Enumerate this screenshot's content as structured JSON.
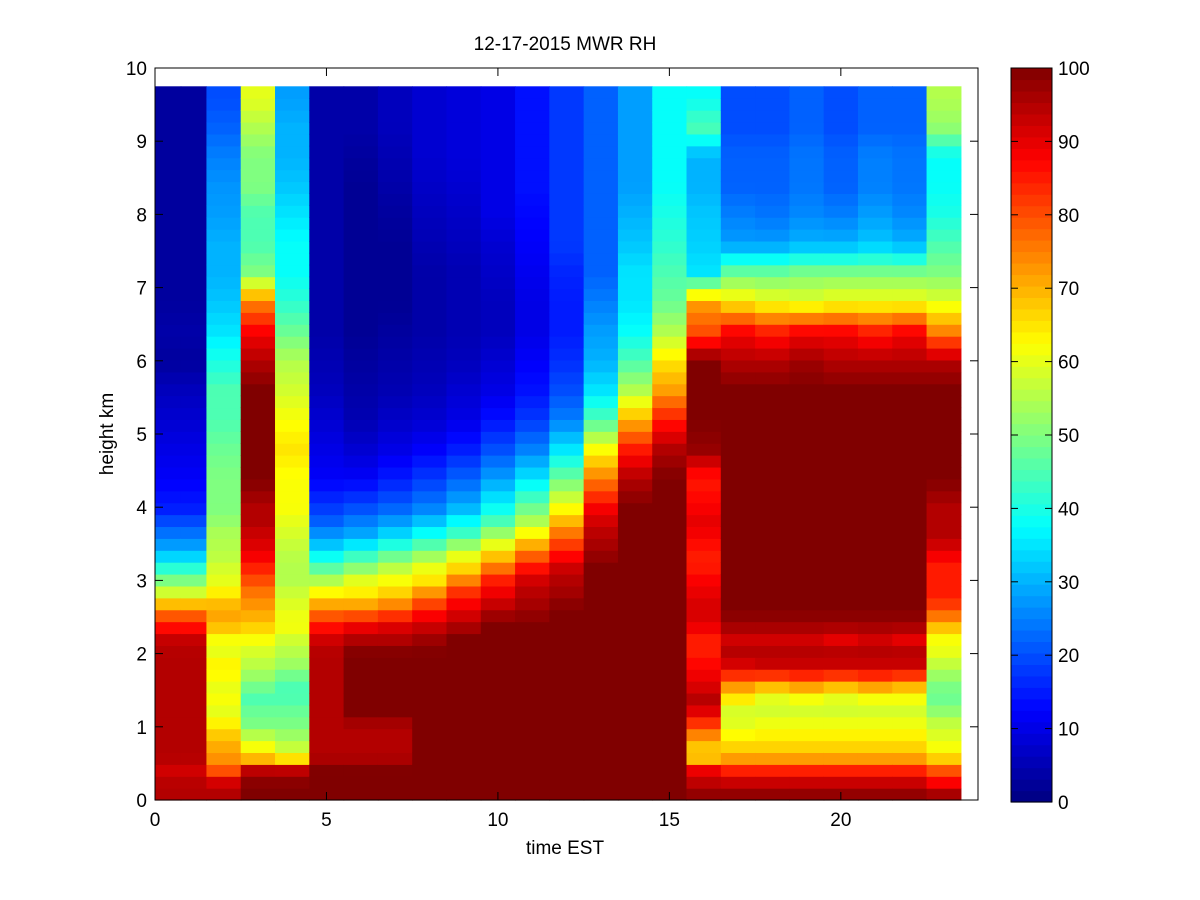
{
  "chart_data": {
    "type": "heatmap",
    "title": "12-17-2015 MWR RH",
    "xlabel": "time EST",
    "ylabel": "height km",
    "xlim": [
      0,
      24
    ],
    "ylim": [
      0,
      10
    ],
    "xticks": [
      "0",
      "5",
      "10",
      "15",
      "20"
    ],
    "xtick_values": [
      0,
      5,
      10,
      15,
      20
    ],
    "yticks": [
      "0",
      "1",
      "2",
      "3",
      "4",
      "5",
      "6",
      "7",
      "8",
      "9",
      "10"
    ],
    "ytick_values": [
      0,
      1,
      2,
      3,
      4,
      5,
      6,
      7,
      8,
      9,
      10
    ],
    "colorbar": {
      "range": [
        0,
        100
      ],
      "ticks": [
        "0",
        "10",
        "20",
        "30",
        "40",
        "50",
        "60",
        "70",
        "80",
        "90",
        "100"
      ],
      "tick_values": [
        0,
        10,
        20,
        30,
        40,
        50,
        60,
        70,
        80,
        90,
        100
      ],
      "colormap": "jet"
    },
    "x": [
      0.5,
      1.0,
      2.0,
      3.0,
      4.0,
      5.0,
      6.0,
      7.0,
      8.0,
      9.0,
      10.0,
      11.0,
      12.0,
      13.0,
      14.0,
      15.0,
      16.0,
      17.0,
      18.0,
      19.0,
      20.0,
      21.0,
      22.0,
      23.0
    ],
    "x_edges": [
      0.0,
      0.75,
      1.5,
      2.5,
      3.5,
      4.5,
      5.5,
      6.5,
      7.5,
      8.5,
      9.5,
      10.5,
      11.5,
      12.5,
      13.5,
      14.5,
      15.5,
      16.5,
      17.5,
      18.5,
      19.5,
      20.5,
      21.5,
      22.5,
      23.5
    ],
    "y_profile_heights": [
      0,
      0.2,
      0.4,
      0.6,
      0.8,
      1.0,
      1.2,
      1.4,
      1.6,
      1.8,
      2.0,
      2.2,
      2.4,
      2.6,
      2.8,
      3.0,
      3.2,
      3.4,
      3.6,
      3.8,
      4.0,
      4.4,
      4.8,
      5.2,
      5.6,
      6.0,
      6.4,
      6.8,
      7.2,
      7.6,
      8.0,
      8.4,
      8.8,
      9.2,
      9.6,
      9.75
    ],
    "y_max": 9.75,
    "z_units": "RH %",
    "profiles": [
      [
        95,
        95,
        92,
        95,
        95,
        95,
        95,
        95,
        95,
        95,
        95,
        93,
        85,
        75,
        60,
        50,
        40,
        30,
        25,
        20,
        15,
        12,
        10,
        8,
        6,
        3,
        4,
        3,
        3,
        3,
        3,
        3,
        3,
        3,
        3,
        3
      ],
      [
        95,
        95,
        92,
        95,
        95,
        95,
        95,
        95,
        95,
        95,
        95,
        93,
        85,
        75,
        60,
        50,
        40,
        30,
        25,
        20,
        15,
        12,
        10,
        8,
        6,
        3,
        4,
        3,
        3,
        3,
        3,
        3,
        3,
        3,
        3,
        3
      ],
      [
        95,
        95,
        80,
        72,
        70,
        65,
        60,
        62,
        60,
        65,
        60,
        62,
        70,
        72,
        65,
        60,
        58,
        55,
        55,
        52,
        50,
        50,
        48,
        45,
        45,
        40,
        35,
        32,
        30,
        30,
        28,
        27,
        25,
        22,
        20,
        20
      ],
      [
        100,
        100,
        95,
        65,
        60,
        50,
        48,
        45,
        50,
        55,
        58,
        62,
        68,
        72,
        75,
        80,
        85,
        90,
        92,
        95,
        95,
        100,
        100,
        100,
        100,
        95,
        88,
        75,
        50,
        45,
        45,
        50,
        50,
        55,
        60,
        60
      ],
      [
        100,
        100,
        95,
        60,
        55,
        50,
        48,
        45,
        45,
        52,
        55,
        58,
        62,
        60,
        58,
        55,
        55,
        56,
        58,
        60,
        62,
        62,
        65,
        62,
        58,
        55,
        48,
        42,
        38,
        38,
        35,
        32,
        30,
        30,
        28,
        28
      ],
      [
        100,
        100,
        100,
        95,
        95,
        95,
        95,
        95,
        95,
        95,
        95,
        92,
        85,
        75,
        65,
        55,
        45,
        35,
        28,
        22,
        18,
        12,
        10,
        8,
        6,
        5,
        4,
        4,
        4,
        4,
        4,
        4,
        4,
        4,
        4,
        4
      ],
      [
        100,
        100,
        100,
        95,
        95,
        95,
        100,
        100,
        100,
        100,
        100,
        95,
        88,
        75,
        65,
        60,
        50,
        40,
        30,
        25,
        20,
        12,
        8,
        5,
        4,
        3,
        2,
        2,
        2,
        2,
        2,
        2,
        3,
        4,
        4,
        4
      ],
      [
        100,
        100,
        100,
        95,
        95,
        95,
        100,
        100,
        100,
        100,
        100,
        95,
        90,
        78,
        68,
        62,
        55,
        45,
        35,
        28,
        22,
        15,
        10,
        7,
        5,
        4,
        3,
        2,
        2,
        2,
        3,
        4,
        5,
        6,
        6,
        6
      ],
      [
        100,
        100,
        100,
        100,
        100,
        100,
        100,
        100,
        100,
        100,
        100,
        97,
        92,
        85,
        75,
        65,
        60,
        50,
        40,
        32,
        25,
        18,
        12,
        8,
        6,
        5,
        4,
        4,
        4,
        5,
        6,
        7,
        8,
        8,
        8,
        8
      ],
      [
        100,
        100,
        100,
        100,
        100,
        100,
        100,
        100,
        100,
        100,
        100,
        100,
        95,
        90,
        85,
        75,
        65,
        58,
        45,
        38,
        30,
        22,
        15,
        10,
        8,
        6,
        5,
        5,
        5,
        6,
        7,
        8,
        9,
        9,
        9,
        9
      ],
      [
        100,
        100,
        100,
        100,
        100,
        100,
        100,
        100,
        100,
        100,
        100,
        100,
        100,
        95,
        90,
        85,
        75,
        65,
        55,
        45,
        38,
        28,
        20,
        14,
        10,
        8,
        6,
        6,
        7,
        8,
        10,
        10,
        10,
        10,
        10,
        10
      ],
      [
        100,
        100,
        100,
        100,
        100,
        100,
        100,
        100,
        100,
        100,
        100,
        100,
        100,
        97,
        95,
        92,
        85,
        75,
        65,
        55,
        48,
        35,
        25,
        18,
        14,
        12,
        10,
        10,
        11,
        12,
        13,
        14,
        14,
        14,
        14,
        14
      ],
      [
        100,
        100,
        100,
        100,
        100,
        100,
        100,
        100,
        100,
        100,
        100,
        100,
        100,
        100,
        97,
        95,
        92,
        85,
        78,
        70,
        62,
        48,
        35,
        25,
        20,
        17,
        15,
        15,
        16,
        18,
        18,
        18,
        18,
        18,
        18,
        18
      ],
      [
        100,
        100,
        100,
        100,
        100,
        100,
        100,
        100,
        100,
        100,
        100,
        100,
        100,
        100,
        100,
        100,
        100,
        97,
        95,
        92,
        88,
        75,
        62,
        45,
        35,
        30,
        28,
        25,
        22,
        22,
        22,
        22,
        22,
        22,
        22,
        22
      ],
      [
        100,
        100,
        100,
        100,
        100,
        100,
        100,
        100,
        100,
        100,
        100,
        100,
        100,
        100,
        100,
        100,
        100,
        100,
        100,
        100,
        100,
        95,
        85,
        70,
        55,
        45,
        38,
        35,
        35,
        32,
        30,
        28,
        28,
        28,
        28,
        28
      ],
      [
        100,
        100,
        100,
        100,
        100,
        100,
        100,
        100,
        100,
        100,
        100,
        100,
        100,
        100,
        100,
        100,
        100,
        100,
        100,
        100,
        100,
        100,
        95,
        85,
        72,
        65,
        55,
        48,
        45,
        42,
        40,
        38,
        38,
        38,
        38,
        38
      ],
      [
        100,
        95,
        90,
        65,
        70,
        80,
        90,
        95,
        90,
        88,
        85,
        85,
        90,
        92,
        90,
        88,
        85,
        85,
        88,
        90,
        88,
        85,
        98,
        100,
        100,
        100,
        80,
        72,
        35,
        33,
        32,
        30,
        30,
        45,
        38,
        38
      ],
      [
        100,
        95,
        85,
        70,
        65,
        60,
        58,
        65,
        75,
        90,
        95,
        92,
        97,
        100,
        100,
        100,
        100,
        100,
        100,
        100,
        100,
        100,
        100,
        100,
        100,
        95,
        88,
        65,
        48,
        28,
        25,
        22,
        22,
        20,
        20,
        20
      ],
      [
        100,
        95,
        85,
        70,
        65,
        62,
        58,
        60,
        72,
        92,
        95,
        92,
        97,
        100,
        100,
        100,
        100,
        100,
        100,
        100,
        100,
        100,
        100,
        100,
        100,
        95,
        85,
        62,
        48,
        28,
        24,
        22,
        22,
        20,
        20,
        20
      ],
      [
        100,
        95,
        85,
        70,
        65,
        62,
        58,
        62,
        75,
        92,
        95,
        92,
        97,
        100,
        100,
        100,
        100,
        100,
        100,
        100,
        100,
        100,
        100,
        100,
        100,
        97,
        88,
        60,
        50,
        30,
        26,
        24,
        24,
        22,
        22,
        22
      ],
      [
        100,
        95,
        85,
        70,
        65,
        62,
        58,
        60,
        72,
        92,
        95,
        90,
        97,
        100,
        100,
        100,
        100,
        100,
        100,
        100,
        100,
        100,
        100,
        100,
        100,
        95,
        88,
        62,
        50,
        30,
        25,
        22,
        22,
        20,
        20,
        20
      ],
      [
        100,
        95,
        85,
        70,
        65,
        62,
        58,
        62,
        75,
        92,
        95,
        92,
        97,
        100,
        100,
        100,
        100,
        100,
        100,
        100,
        100,
        100,
        100,
        100,
        100,
        95,
        85,
        62,
        50,
        32,
        28,
        25,
        25,
        22,
        22,
        22
      ],
      [
        100,
        95,
        85,
        70,
        65,
        62,
        58,
        62,
        72,
        92,
        95,
        90,
        97,
        100,
        100,
        100,
        100,
        100,
        100,
        100,
        100,
        100,
        100,
        100,
        100,
        95,
        88,
        62,
        50,
        30,
        26,
        24,
        24,
        22,
        22,
        22
      ],
      [
        100,
        90,
        80,
        65,
        60,
        58,
        52,
        48,
        50,
        55,
        60,
        62,
        70,
        80,
        85,
        85,
        85,
        90,
        95,
        95,
        95,
        100,
        100,
        100,
        100,
        95,
        75,
        60,
        50,
        45,
        40,
        38,
        38,
        52,
        55,
        55
      ]
    ]
  }
}
